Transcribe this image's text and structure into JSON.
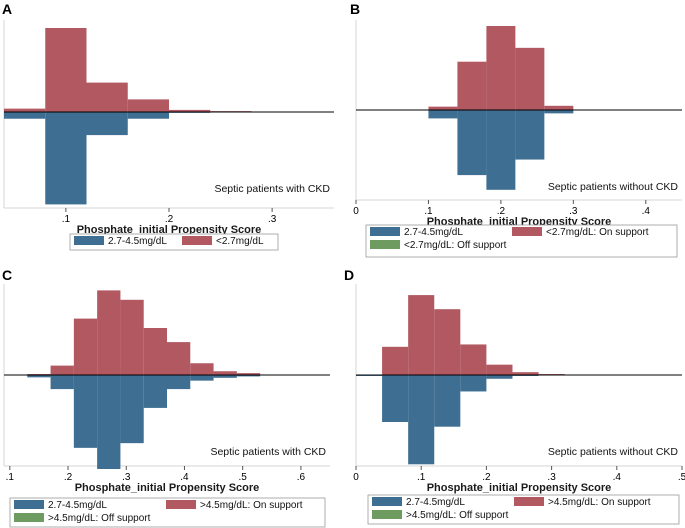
{
  "colors": {
    "treated": "#3e6e91",
    "control": "#b15861",
    "off_support": "#6e9b5f",
    "axis": "#000000",
    "frame": "#d4d4d4"
  },
  "chart_data": [
    {
      "type": "bar",
      "panel": "A",
      "xlabel": "Phosphate_initial Propensity Score",
      "annotation": "Septic patients with CKD",
      "xlim": [
        0.04,
        0.36
      ],
      "xticks": [
        0.1,
        0.2,
        0.3
      ],
      "xtick_labels": [
        ".1",
        ".2",
        ".3"
      ],
      "ylim": [
        -0.2,
        0.2
      ],
      "bin_width": 0.04,
      "up": {
        "name": "<2.7mg/dL",
        "color_key": "control",
        "x": [
          0.04,
          0.08,
          0.12,
          0.16,
          0.2,
          0.24,
          0.28
        ],
        "values": [
          0.008,
          0.2,
          0.07,
          0.03,
          0.005,
          0.002,
          0.001
        ]
      },
      "down": {
        "name": "2.7-4.5mg/dL",
        "color_key": "treated",
        "x": [
          0.04,
          0.08,
          0.12,
          0.16,
          0.2,
          0.24,
          0.28
        ],
        "values": [
          0.016,
          0.22,
          0.055,
          0.016,
          0.002,
          0.001,
          0.0
        ]
      },
      "legend": [
        {
          "label": "2.7-4.5mg/dL",
          "color_key": "treated"
        },
        {
          "label": "<2.7mg/dL",
          "color_key": "control"
        }
      ]
    },
    {
      "type": "bar",
      "panel": "B",
      "xlabel": "Phosphate_initial Propensity Score",
      "annotation": "Septic patients without CKD",
      "xlim": [
        0.0,
        0.45
      ],
      "xticks": [
        0,
        0.1,
        0.2,
        0.3,
        0.4
      ],
      "xtick_labels": [
        "0",
        ".1",
        ".2",
        ".3",
        ".4"
      ],
      "ylim": [
        -0.2,
        0.2
      ],
      "bin_width": 0.04,
      "up": {
        "name": "<2.7mg/dL: On support",
        "color_key": "control",
        "x": [
          0.1,
          0.14,
          0.18,
          0.22,
          0.26,
          0.3
        ],
        "values": [
          0.008,
          0.115,
          0.2,
          0.148,
          0.01,
          0.0
        ]
      },
      "down": {
        "name": "2.7-4.5mg/dL",
        "color_key": "treated",
        "x": [
          0.1,
          0.14,
          0.18,
          0.22,
          0.26,
          0.3
        ],
        "values": [
          0.02,
          0.155,
          0.19,
          0.118,
          0.008,
          0.0
        ]
      },
      "legend": [
        {
          "label": "2.7-4.5mg/dL",
          "color_key": "treated"
        },
        {
          "label": "<2.7mg/dL: On support",
          "color_key": "control"
        },
        {
          "label": "<2.7mg/dL: Off support",
          "color_key": "off_support"
        }
      ]
    },
    {
      "type": "bar",
      "panel": "C",
      "xlabel": "Phosphate_initial Propensity Score",
      "annotation": "Septic patients with CKD",
      "xlim": [
        0.09,
        0.65
      ],
      "xticks": [
        0.1,
        0.2,
        0.3,
        0.4,
        0.5,
        0.6
      ],
      "xtick_labels": [
        ".1",
        ".2",
        ".3",
        ".4",
        ".5",
        ".6"
      ],
      "ylim": [
        -0.2,
        0.2
      ],
      "bin_width": 0.04,
      "up": {
        "name": ">4.5mg/dL: On support",
        "color_key": "control",
        "x": [
          0.09,
          0.13,
          0.17,
          0.21,
          0.25,
          0.29,
          0.33,
          0.37,
          0.41,
          0.45,
          0.49,
          0.53,
          0.57,
          0.61
        ],
        "values": [
          0.0,
          0.002,
          0.02,
          0.12,
          0.18,
          0.16,
          0.1,
          0.07,
          0.025,
          0.008,
          0.004,
          0.0,
          0.0,
          0.0
        ]
      },
      "down": {
        "name": "2.7-4.5mg/dL",
        "color_key": "treated",
        "x": [
          0.09,
          0.13,
          0.17,
          0.21,
          0.25,
          0.29,
          0.33,
          0.37,
          0.41,
          0.45,
          0.49,
          0.53,
          0.57,
          0.61
        ],
        "values": [
          0.0,
          0.005,
          0.03,
          0.155,
          0.2,
          0.145,
          0.07,
          0.03,
          0.012,
          0.006,
          0.003,
          0.0,
          0.0,
          0.0
        ]
      },
      "legend": [
        {
          "label": "2.7-4.5mg/dL",
          "color_key": "treated"
        },
        {
          "label": ">4.5mg/dL: On support",
          "color_key": "control"
        },
        {
          "label": ">4.5mg/dL: Off support",
          "color_key": "off_support"
        }
      ]
    },
    {
      "type": "bar",
      "panel": "D",
      "xlabel": "Phosphate_initial Propensity Score",
      "annotation": "Septic patients without CKD",
      "xlim": [
        0.0,
        0.5
      ],
      "xticks": [
        0,
        0.1,
        0.2,
        0.3,
        0.4,
        0.5
      ],
      "xtick_labels": [
        "0",
        ".1",
        ".2",
        ".3",
        ".4",
        ".5"
      ],
      "ylim": [
        -0.2,
        0.2
      ],
      "bin_width": 0.04,
      "up": {
        "name": ">4.5mg/dL: On support",
        "color_key": "control",
        "x": [
          0.0,
          0.04,
          0.08,
          0.12,
          0.16,
          0.2,
          0.24,
          0.28,
          0.32,
          0.36
        ],
        "values": [
          0.0,
          0.06,
          0.17,
          0.14,
          0.065,
          0.022,
          0.006,
          0.002,
          0.0,
          0.0
        ]
      },
      "down": {
        "name": "2.7-4.5mg/dL",
        "color_key": "treated",
        "x": [
          0.0,
          0.04,
          0.08,
          0.12,
          0.16,
          0.2,
          0.24,
          0.28,
          0.32,
          0.36
        ],
        "values": [
          0.002,
          0.1,
          0.19,
          0.11,
          0.035,
          0.008,
          0.002,
          0.0,
          0.0,
          0.0
        ]
      },
      "legend": [
        {
          "label": "2.7-4.5mg/dL",
          "color_key": "treated"
        },
        {
          "label": ">4.5mg/dL: On support",
          "color_key": "control"
        },
        {
          "label": ">4.5mg/dL: Off support",
          "color_key": "off_support"
        }
      ]
    }
  ]
}
